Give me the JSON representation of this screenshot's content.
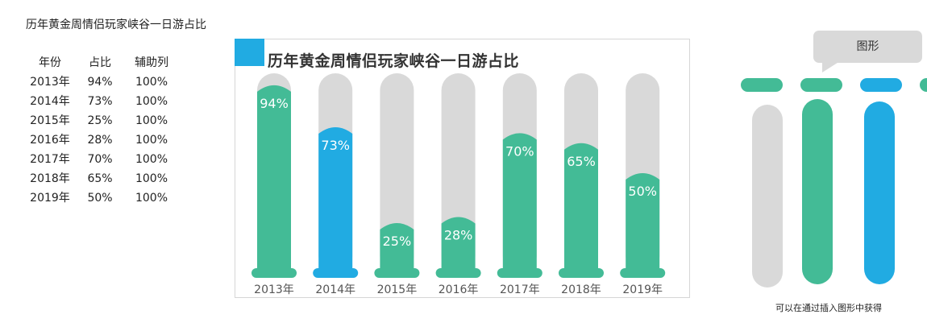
{
  "sheet_title": "历年黄金周情侣玩家峡谷一日游占比",
  "table": {
    "headers": [
      "年份",
      "占比",
      "辅助列"
    ],
    "rows": [
      [
        "2013年",
        "94%",
        "100%"
      ],
      [
        "2014年",
        "73%",
        "100%"
      ],
      [
        "2015年",
        "25%",
        "100%"
      ],
      [
        "2016年",
        "28%",
        "100%"
      ],
      [
        "2017年",
        "70%",
        "100%"
      ],
      [
        "2018年",
        "65%",
        "100%"
      ],
      [
        "2019年",
        "50%",
        "100%"
      ]
    ]
  },
  "chart_data": {
    "type": "bar",
    "title": "历年黄金周情侣玩家峡谷一日游占比",
    "categories": [
      "2013年",
      "2014年",
      "2015年",
      "2016年",
      "2017年",
      "2018年",
      "2019年"
    ],
    "series": [
      {
        "name": "占比",
        "values": [
          94,
          73,
          25,
          28,
          70,
          65,
          50
        ]
      },
      {
        "name": "辅助列",
        "values": [
          100,
          100,
          100,
          100,
          100,
          100,
          100
        ]
      }
    ],
    "data_labels": [
      "94%",
      "73%",
      "25%",
      "28%",
      "70%",
      "65%",
      "50%"
    ],
    "ylim": [
      0,
      100
    ],
    "xlabel": "",
    "ylabel": "",
    "highlight_index": 1,
    "grid": false,
    "colors": {
      "bar": "#43bb96",
      "highlight": "#21abe2",
      "track": "#d9d9d9",
      "label": "#ffffff",
      "tick": "#555555"
    }
  },
  "shapes_panel": {
    "callout_label": "图形",
    "note": "可以在通过插入图形中获得",
    "colors": [
      "#d9d9d9",
      "#43bb96",
      "#21abe2"
    ]
  }
}
